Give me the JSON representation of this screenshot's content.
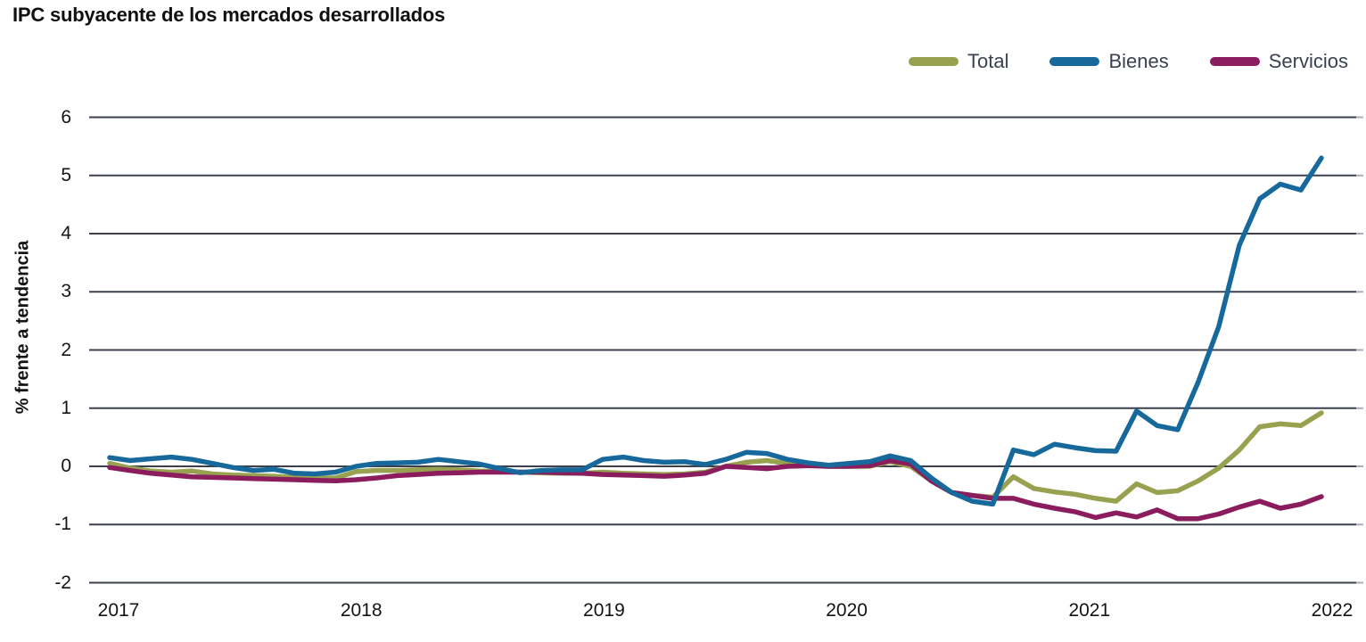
{
  "chart_data": {
    "type": "line",
    "title": "IPC subyacente de los mercados desarrollados",
    "ylabel": "% frente a tendencia",
    "x_tick_labels": [
      "2017",
      "2018",
      "2019",
      "2020",
      "2021",
      "2022"
    ],
    "y_tick_labels": [
      "6",
      "5",
      "4",
      "3",
      "2",
      "1",
      "0",
      "-1",
      "-2"
    ],
    "y_tick_values": [
      6,
      5,
      4,
      3,
      2,
      1,
      0,
      -1,
      -2
    ],
    "ylim": [
      -2,
      6
    ],
    "frequency": "monthly",
    "x_start": "2017-01",
    "x_end": "2021-12",
    "grid": "horizontal",
    "legend_position": "top-right",
    "grid_color": "#3b404c",
    "grid_tip_color": "#a9aeb8",
    "text_color": "#141414",
    "legend_text_color": "#3a4150",
    "series": [
      {
        "name": "Total",
        "color": "#98A14F",
        "values": [
          0.05,
          -0.03,
          -0.08,
          -0.1,
          -0.08,
          -0.13,
          -0.15,
          -0.16,
          -0.17,
          -0.19,
          -0.2,
          -0.2,
          -0.09,
          -0.07,
          -0.07,
          -0.06,
          -0.05,
          -0.06,
          -0.08,
          -0.09,
          -0.1,
          -0.11,
          -0.12,
          -0.12,
          -0.1,
          -0.12,
          -0.13,
          -0.14,
          -0.13,
          -0.1,
          0.0,
          0.07,
          0.1,
          0.05,
          0.02,
          0.0,
          0.0,
          0.0,
          0.08,
          0.0,
          -0.25,
          -0.45,
          -0.5,
          -0.53,
          -0.18,
          -0.38,
          -0.44,
          -0.48,
          -0.55,
          -0.6,
          -0.3,
          -0.45,
          -0.42,
          -0.25,
          -0.03,
          0.28,
          0.68,
          0.73,
          0.7,
          0.92
        ]
      },
      {
        "name": "Bienes",
        "color": "#17699C",
        "values": [
          0.15,
          0.1,
          0.13,
          0.16,
          0.12,
          0.05,
          -0.02,
          -0.07,
          -0.05,
          -0.12,
          -0.13,
          -0.1,
          0.0,
          0.05,
          0.06,
          0.07,
          0.12,
          0.08,
          0.04,
          -0.04,
          -0.11,
          -0.07,
          -0.06,
          -0.06,
          0.12,
          0.16,
          0.1,
          0.07,
          0.08,
          0.03,
          0.12,
          0.24,
          0.22,
          0.12,
          0.06,
          0.02,
          0.05,
          0.08,
          0.18,
          0.1,
          -0.2,
          -0.45,
          -0.6,
          -0.65,
          0.28,
          0.2,
          0.38,
          0.32,
          0.27,
          0.26,
          0.95,
          0.7,
          0.63,
          1.45,
          2.4,
          3.8,
          4.6,
          4.85,
          4.75,
          5.3
        ]
      },
      {
        "name": "Servicios",
        "color": "#8B1D5E",
        "values": [
          -0.02,
          -0.07,
          -0.12,
          -0.15,
          -0.18,
          -0.19,
          -0.2,
          -0.21,
          -0.22,
          -0.23,
          -0.24,
          -0.25,
          -0.23,
          -0.2,
          -0.16,
          -0.14,
          -0.12,
          -0.11,
          -0.1,
          -0.1,
          -0.1,
          -0.1,
          -0.11,
          -0.12,
          -0.14,
          -0.15,
          -0.16,
          -0.17,
          -0.15,
          -0.12,
          0.0,
          -0.02,
          -0.04,
          0.0,
          0.01,
          0.0,
          0.0,
          0.01,
          0.1,
          0.04,
          -0.25,
          -0.45,
          -0.5,
          -0.55,
          -0.55,
          -0.65,
          -0.72,
          -0.78,
          -0.88,
          -0.8,
          -0.87,
          -0.75,
          -0.9,
          -0.9,
          -0.82,
          -0.7,
          -0.6,
          -0.72,
          -0.65,
          -0.52
        ]
      }
    ]
  }
}
